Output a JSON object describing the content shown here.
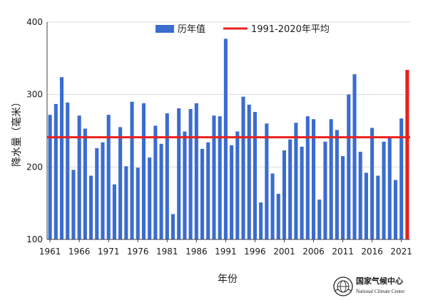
{
  "chart_data": {
    "type": "bar",
    "ylabel": "降水量（毫米）",
    "xlabel": "年份",
    "ylim": [
      100,
      400
    ],
    "yticks": [
      100,
      200,
      300,
      400
    ],
    "xticks": [
      1961,
      1966,
      1971,
      1976,
      1981,
      1986,
      1991,
      1996,
      2001,
      2006,
      2011,
      2016,
      2021
    ],
    "legend": {
      "placement": "top-center"
    },
    "series": [
      {
        "name": "历年值",
        "color": "#3b6ccf",
        "x": [
          1961,
          1962,
          1963,
          1964,
          1965,
          1966,
          1967,
          1968,
          1969,
          1970,
          1971,
          1972,
          1973,
          1974,
          1975,
          1976,
          1977,
          1978,
          1979,
          1980,
          1981,
          1982,
          1983,
          1984,
          1985,
          1986,
          1987,
          1988,
          1989,
          1990,
          1991,
          1992,
          1993,
          1994,
          1995,
          1996,
          1997,
          1998,
          1999,
          2000,
          2001,
          2002,
          2003,
          2004,
          2005,
          2006,
          2007,
          2008,
          2009,
          2010,
          2011,
          2012,
          2013,
          2014,
          2015,
          2016,
          2017,
          2018,
          2019,
          2020,
          2021,
          2022
        ],
        "values": [
          272,
          287,
          324,
          289,
          196,
          271,
          253,
          188,
          226,
          234,
          272,
          176,
          255,
          201,
          290,
          199,
          288,
          213,
          257,
          232,
          274,
          135,
          281,
          249,
          280,
          288,
          225,
          234,
          271,
          270,
          377,
          230,
          249,
          297,
          286,
          276,
          151,
          260,
          191,
          163,
          223,
          238,
          261,
          228,
          270,
          266,
          155,
          235,
          266,
          251,
          215,
          300,
          328,
          221,
          192,
          254,
          188,
          235,
          240,
          182,
          267,
          null
        ]
      },
      {
        "name": "1991-2020年平均",
        "color": "#e8201e",
        "type": "line",
        "value": 241
      }
    ],
    "highlight": {
      "x": 2022,
      "value": 334,
      "color": "#e8201e"
    }
  },
  "logo": {
    "name_cn": "国家气候中心",
    "name_en": "National Climate Center"
  }
}
